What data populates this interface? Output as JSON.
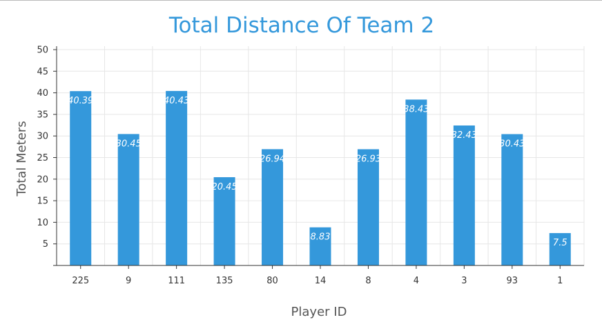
{
  "chart_data": {
    "type": "bar",
    "title": "Total Distance Of Team 2",
    "xlabel": "Player ID",
    "ylabel": "Total Meters",
    "categories": [
      "225",
      "9",
      "111",
      "135",
      "80",
      "14",
      "8",
      "4",
      "3",
      "93",
      "1"
    ],
    "values": [
      40.39,
      30.45,
      40.43,
      20.45,
      26.94,
      8.83,
      26.93,
      38.43,
      32.43,
      30.43,
      7.5
    ],
    "data_labels": [
      "40.39",
      "30.45",
      "40.43",
      "20.45",
      "26.94",
      "8.83",
      "26.93",
      "38.43",
      "32.43",
      "30.43",
      "7.5"
    ],
    "ylim": [
      0,
      50
    ],
    "yticks": [
      5,
      10,
      15,
      20,
      25,
      30,
      35,
      40,
      45,
      50
    ],
    "grid": true,
    "bar_color": "#3498db"
  }
}
